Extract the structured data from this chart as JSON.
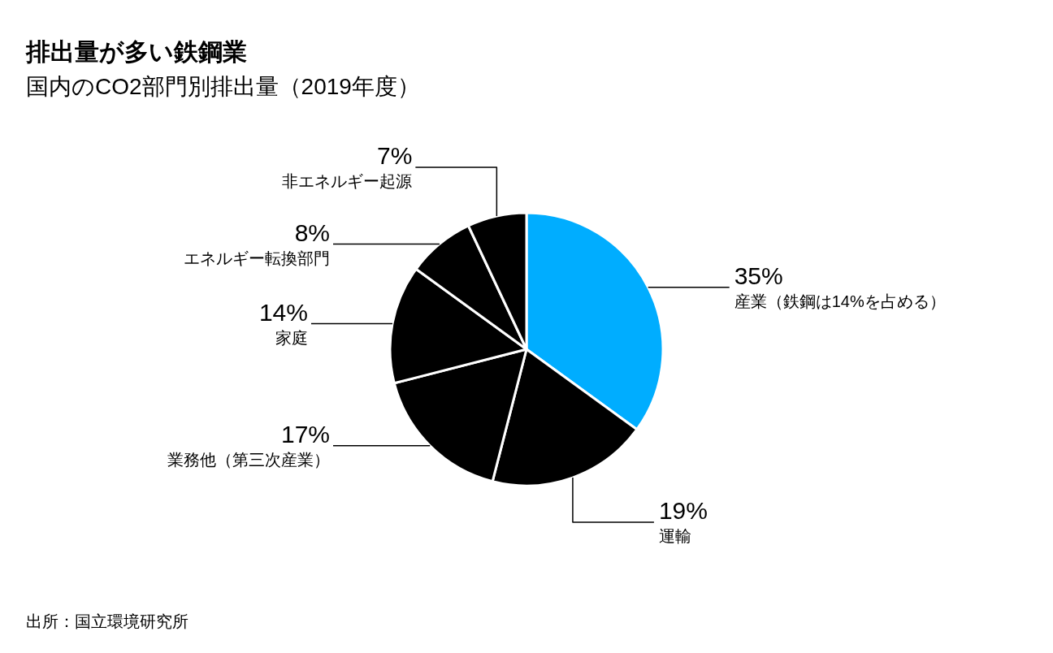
{
  "chart_data": {
    "type": "pie",
    "title": "排出量が多い鉄鋼業",
    "subtitle": "国内のCO2部門別排出量（2019年度）",
    "categories": [
      "産業（鉄鋼は14%を占める）",
      "運輸",
      "業務他（第三次産業）",
      "家庭",
      "エネルギー転換部門",
      "非エネルギー起源"
    ],
    "values": [
      35,
      19,
      17,
      14,
      8,
      7
    ],
    "colors": [
      "#00adff",
      "#000000",
      "#000000",
      "#000000",
      "#000000",
      "#000000"
    ],
    "value_labels": [
      "35%",
      "19%",
      "17%",
      "14%",
      "8%",
      "7%"
    ],
    "annotations": [
      "出所：国立環境研究所"
    ]
  }
}
